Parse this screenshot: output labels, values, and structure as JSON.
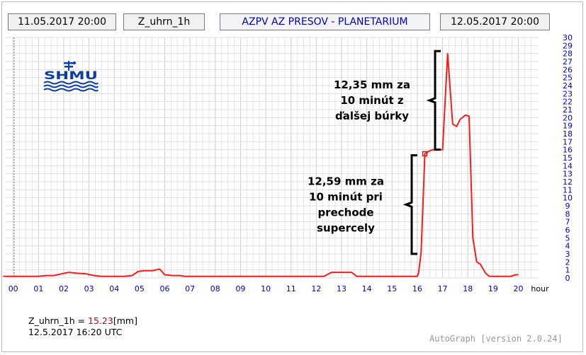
{
  "header": {
    "start_time": "11.05.2017 20:00",
    "variable": "Z_uhrn_1h",
    "station": "AZPV AZ PRESOV - PLANETARIUM",
    "end_time": "12.05.2017 20:00"
  },
  "logo_text": "SHMU",
  "readout": {
    "label": "Z_uhrn_1h = ",
    "value": "15.23",
    "unit": "[mm]",
    "time": "12.5.2017 16:20 UTC"
  },
  "footer": "AutoGraph [version 2.0.24]",
  "colors": {
    "series": "#ff1a1a",
    "axis_text": "#0000cc",
    "grid": "#d2d2d2",
    "marker_line": "#6a6ad8"
  },
  "chart_data": {
    "type": "line",
    "title": "",
    "xlabel": "hour",
    "ylabel": "",
    "x_tick_labels": [
      "00",
      "01",
      "02",
      "03",
      "04",
      "05",
      "06",
      "07",
      "08",
      "09",
      "10",
      "11",
      "12",
      "13",
      "14",
      "15",
      "16",
      "17",
      "18",
      "19",
      "20"
    ],
    "xlim": [
      -0.3,
      20.8
    ],
    "ylim": [
      0,
      30
    ],
    "y_axis_position": "right",
    "grid": true,
    "series": [
      {
        "values": [
          [
            -0.4,
            0.2
          ],
          [
            0.0,
            0.2
          ],
          [
            0.5,
            0.2
          ],
          [
            1.0,
            0.2
          ],
          [
            1.3,
            0.3
          ],
          [
            1.6,
            0.3
          ],
          [
            1.9,
            0.5
          ],
          [
            2.2,
            0.7
          ],
          [
            2.5,
            0.6
          ],
          [
            2.9,
            0.5
          ],
          [
            3.2,
            0.3
          ],
          [
            3.5,
            0.2
          ],
          [
            4.0,
            0.2
          ],
          [
            4.4,
            0.2
          ],
          [
            4.7,
            0.3
          ],
          [
            4.95,
            0.8
          ],
          [
            5.2,
            0.9
          ],
          [
            5.5,
            0.9
          ],
          [
            5.8,
            1.1
          ],
          [
            6.0,
            0.4
          ],
          [
            6.3,
            0.3
          ],
          [
            6.6,
            0.3
          ],
          [
            6.8,
            0.2
          ],
          [
            7.5,
            0.2
          ],
          [
            8.5,
            0.2
          ],
          [
            9.5,
            0.2
          ],
          [
            10.5,
            0.2
          ],
          [
            11.5,
            0.2
          ],
          [
            12.3,
            0.2
          ],
          [
            12.6,
            0.7
          ],
          [
            13.0,
            0.7
          ],
          [
            13.4,
            0.7
          ],
          [
            13.6,
            0.2
          ],
          [
            14.5,
            0.2
          ],
          [
            15.5,
            0.2
          ],
          [
            16.0,
            0.2
          ],
          [
            16.05,
            0.6
          ],
          [
            16.15,
            3.2
          ],
          [
            16.3,
            15.5
          ],
          [
            16.45,
            15.8
          ],
          [
            16.6,
            16.0
          ],
          [
            16.8,
            16.0
          ],
          [
            17.0,
            16.0
          ],
          [
            17.2,
            28.0
          ],
          [
            17.4,
            19.2
          ],
          [
            17.55,
            18.9
          ],
          [
            17.7,
            19.8
          ],
          [
            17.9,
            20.3
          ],
          [
            18.05,
            20.2
          ],
          [
            18.2,
            5.0
          ],
          [
            18.35,
            2.0
          ],
          [
            18.5,
            1.7
          ],
          [
            18.7,
            0.6
          ],
          [
            18.85,
            0.2
          ],
          [
            19.3,
            0.2
          ],
          [
            19.7,
            0.2
          ],
          [
            19.9,
            0.4
          ],
          [
            20.0,
            0.4
          ]
        ]
      }
    ],
    "highlight_point": {
      "x": 16.3,
      "y": 15.5
    },
    "annotations": [
      {
        "text_lines": [
          "12,35 mm za",
          "10 minút z",
          "ďalšej búrky"
        ],
        "bracket_from": 16.0,
        "bracket_to": 28.3
      },
      {
        "text_lines": [
          "12,59 mm za",
          "10 minút pri",
          "prechode",
          "supercely"
        ],
        "bracket_from": 3.0,
        "bracket_to": 15.3
      }
    ]
  }
}
